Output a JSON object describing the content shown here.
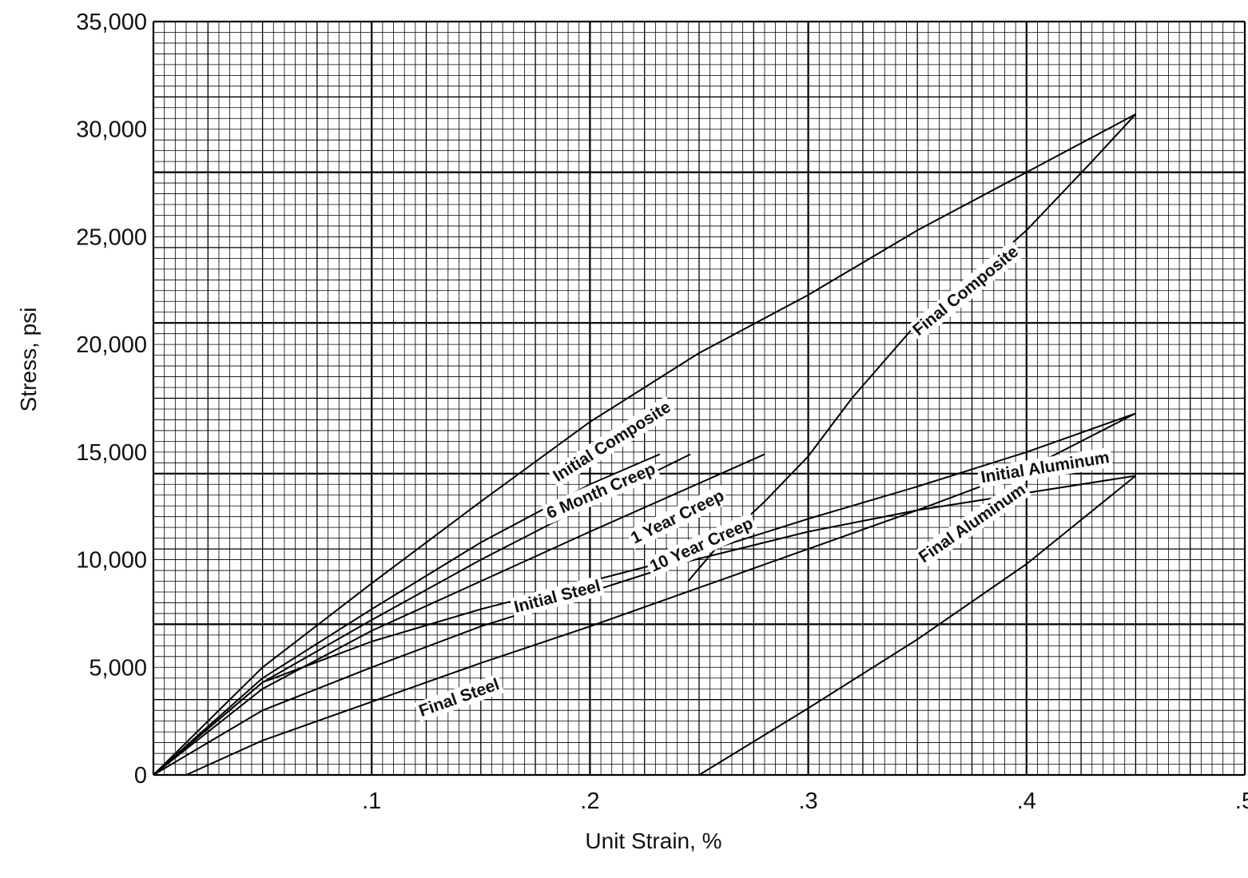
{
  "chart_data": {
    "type": "line",
    "title": "",
    "xlabel": "Unit Strain, %",
    "ylabel": "Stress, psi",
    "xlim": [
      0,
      0.5
    ],
    "ylim": [
      0,
      35000
    ],
    "grid": true,
    "x_ticks": [
      {
        "value": 0.1,
        "label": ".1"
      },
      {
        "value": 0.2,
        "label": ".2"
      },
      {
        "value": 0.3,
        "label": ".3"
      },
      {
        "value": 0.4,
        "label": ".4"
      },
      {
        "value": 0.5,
        "label": ".5"
      }
    ],
    "y_ticks": [
      {
        "value": 0,
        "label": "0"
      },
      {
        "value": 5000,
        "label": "5,000"
      },
      {
        "value": 10000,
        "label": "10,000"
      },
      {
        "value": 15000,
        "label": "15,000"
      },
      {
        "value": 20000,
        "label": "20,000"
      },
      {
        "value": 25000,
        "label": "25,000"
      },
      {
        "value": 30000,
        "label": "30,000"
      },
      {
        "value": 35000,
        "label": "35,000"
      }
    ],
    "series": [
      {
        "name": "Initial Composite",
        "label_at": [
          0.21,
          15500
        ],
        "points": [
          [
            0,
            0
          ],
          [
            0.05,
            5000
          ],
          [
            0.1,
            8900
          ],
          [
            0.15,
            12700
          ],
          [
            0.2,
            16400
          ],
          [
            0.25,
            19600
          ],
          [
            0.3,
            22300
          ],
          [
            0.35,
            25300
          ],
          [
            0.4,
            28000
          ],
          [
            0.45,
            30700
          ]
        ]
      },
      {
        "name": "Final Composite",
        "label_at": [
          0.372,
          22500
        ],
        "points": [
          [
            0.245,
            9000
          ],
          [
            0.26,
            10800
          ],
          [
            0.28,
            12700
          ],
          [
            0.3,
            14800
          ],
          [
            0.32,
            17500
          ],
          [
            0.35,
            21000
          ],
          [
            0.38,
            23500
          ],
          [
            0.4,
            25300
          ],
          [
            0.43,
            28500
          ],
          [
            0.45,
            30700
          ]
        ]
      },
      {
        "name": "6 Month Creep",
        "label_at": [
          0.205,
          13200
        ],
        "points": [
          [
            0,
            0
          ],
          [
            0.05,
            4500
          ],
          [
            0.1,
            7700
          ],
          [
            0.15,
            10800
          ],
          [
            0.2,
            13500
          ],
          [
            0.232,
            14900
          ]
        ]
      },
      {
        "name": "1 Year Creep",
        "label_at": [
          0.24,
          12000
        ],
        "points": [
          [
            0,
            0
          ],
          [
            0.05,
            4300
          ],
          [
            0.1,
            7200
          ],
          [
            0.15,
            10000
          ],
          [
            0.2,
            12600
          ],
          [
            0.246,
            14900
          ]
        ]
      },
      {
        "name": "10 Year Creep",
        "label_at": [
          0.251,
          10700
        ],
        "points": [
          [
            0,
            0
          ],
          [
            0.05,
            4000
          ],
          [
            0.1,
            6700
          ],
          [
            0.15,
            9000
          ],
          [
            0.2,
            11300
          ],
          [
            0.28,
            14900
          ]
        ]
      },
      {
        "name": "Initial Steel",
        "label_at": [
          0.185,
          8300
        ],
        "points": [
          [
            0,
            0
          ],
          [
            0.05,
            4300
          ],
          [
            0.1,
            6200
          ],
          [
            0.15,
            7700
          ],
          [
            0.2,
            9000
          ],
          [
            0.25,
            10300
          ],
          [
            0.3,
            11900
          ],
          [
            0.35,
            13400
          ],
          [
            0.4,
            15000
          ],
          [
            0.45,
            16800
          ]
        ]
      },
      {
        "name": "Final Steel",
        "label_at": [
          0.14,
          3600
        ],
        "points": [
          [
            0.015,
            0
          ],
          [
            0.05,
            1600
          ],
          [
            0.1,
            3400
          ],
          [
            0.15,
            5200
          ],
          [
            0.2,
            6900
          ],
          [
            0.25,
            8700
          ],
          [
            0.3,
            10500
          ],
          [
            0.35,
            12300
          ],
          [
            0.4,
            14200
          ],
          [
            0.45,
            16800
          ]
        ]
      },
      {
        "name": "Initial Aluminum",
        "label_at": [
          0.4085,
          14300
        ],
        "points": [
          [
            0,
            0
          ],
          [
            0.05,
            3000
          ],
          [
            0.1,
            5000
          ],
          [
            0.15,
            6900
          ],
          [
            0.2,
            8500
          ],
          [
            0.24,
            9800
          ],
          [
            0.3,
            11300
          ],
          [
            0.35,
            12300
          ],
          [
            0.4,
            13100
          ],
          [
            0.45,
            13900
          ]
        ]
      },
      {
        "name": "Final Aluminum",
        "label_at": [
          0.375,
          11700
        ],
        "points": [
          [
            0.25,
            0
          ],
          [
            0.3,
            3100
          ],
          [
            0.35,
            6300
          ],
          [
            0.4,
            9800
          ],
          [
            0.45,
            13900
          ]
        ]
      }
    ]
  }
}
